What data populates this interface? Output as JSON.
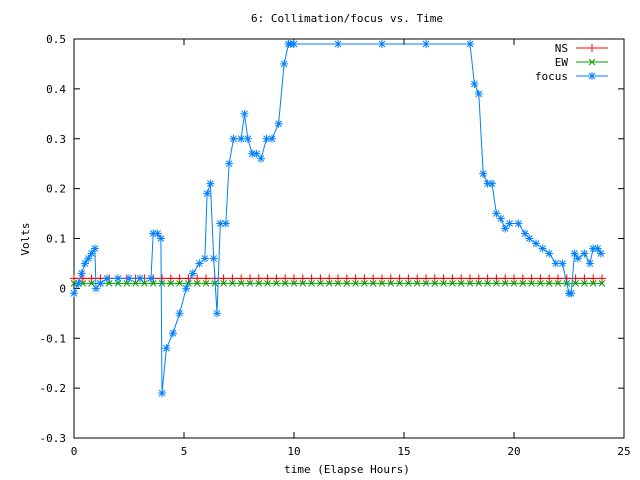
{
  "chart_data": {
    "type": "line",
    "title": "6: Collimation/focus vs. Time",
    "xlabel": "time (Elapse Hours)",
    "ylabel": "Volts",
    "xlim": [
      0,
      25
    ],
    "ylim": [
      -0.3,
      0.5
    ],
    "xticks": [
      0,
      5,
      10,
      15,
      20,
      25
    ],
    "yticks": [
      -0.3,
      -0.2,
      -0.1,
      0,
      0.1,
      0.2,
      0.3,
      0.4,
      0.5
    ],
    "xtick_labels": [
      "0",
      "5",
      "10",
      "15",
      "20",
      "25"
    ],
    "ytick_labels": [
      "-0.3",
      "-0.2",
      "-0.1",
      "0",
      "0.1",
      "0.2",
      "0.3",
      "0.4",
      "0.5"
    ],
    "grid": false,
    "legend_position": "top-right",
    "series": [
      {
        "name": "NS",
        "color": "#ff0000",
        "marker": "plus",
        "x": [
          0,
          0.4,
          0.8,
          1.2,
          1.6,
          2.0,
          2.4,
          2.8,
          3.2,
          3.6,
          4.0,
          4.4,
          4.8,
          5.2,
          5.6,
          6.0,
          6.4,
          6.8,
          7.2,
          7.6,
          8.0,
          8.4,
          8.8,
          9.2,
          9.6,
          10.0,
          10.4,
          10.8,
          11.2,
          11.6,
          12.0,
          12.4,
          12.8,
          13.2,
          13.6,
          14.0,
          14.4,
          14.8,
          15.2,
          15.6,
          16.0,
          16.4,
          16.8,
          17.2,
          17.6,
          18.0,
          18.4,
          18.8,
          19.2,
          19.6,
          20.0,
          20.4,
          20.8,
          21.2,
          21.6,
          22.0,
          22.4,
          22.8,
          23.2,
          23.6,
          24.0
        ],
        "y": [
          0.02,
          0.02,
          0.02,
          0.02,
          0.02,
          0.02,
          0.02,
          0.02,
          0.02,
          0.02,
          0.02,
          0.02,
          0.02,
          0.02,
          0.02,
          0.02,
          0.02,
          0.02,
          0.02,
          0.02,
          0.02,
          0.02,
          0.02,
          0.02,
          0.02,
          0.02,
          0.02,
          0.02,
          0.02,
          0.02,
          0.02,
          0.02,
          0.02,
          0.02,
          0.02,
          0.02,
          0.02,
          0.02,
          0.02,
          0.02,
          0.02,
          0.02,
          0.02,
          0.02,
          0.02,
          0.02,
          0.02,
          0.02,
          0.02,
          0.02,
          0.02,
          0.02,
          0.02,
          0.02,
          0.02,
          0.02,
          0.02,
          0.02,
          0.02,
          0.02,
          0.02
        ]
      },
      {
        "name": "EW",
        "color": "#00a000",
        "marker": "cross",
        "x": [
          0,
          0.4,
          0.8,
          1.2,
          1.6,
          2.0,
          2.4,
          2.8,
          3.2,
          3.6,
          4.0,
          4.4,
          4.8,
          5.2,
          5.6,
          6.0,
          6.4,
          6.8,
          7.2,
          7.6,
          8.0,
          8.4,
          8.8,
          9.2,
          9.6,
          10.0,
          10.4,
          10.8,
          11.2,
          11.6,
          12.0,
          12.4,
          12.8,
          13.2,
          13.6,
          14.0,
          14.4,
          14.8,
          15.2,
          15.6,
          16.0,
          16.4,
          16.8,
          17.2,
          17.6,
          18.0,
          18.4,
          18.8,
          19.2,
          19.6,
          20.0,
          20.4,
          20.8,
          21.2,
          21.6,
          22.0,
          22.4,
          22.8,
          23.2,
          23.6,
          24.0
        ],
        "y": [
          0.01,
          0.01,
          0.01,
          0.01,
          0.01,
          0.01,
          0.01,
          0.01,
          0.01,
          0.01,
          0.01,
          0.01,
          0.01,
          0.01,
          0.01,
          0.01,
          0.01,
          0.01,
          0.01,
          0.01,
          0.01,
          0.01,
          0.01,
          0.01,
          0.01,
          0.01,
          0.01,
          0.01,
          0.01,
          0.01,
          0.01,
          0.01,
          0.01,
          0.01,
          0.01,
          0.01,
          0.01,
          0.01,
          0.01,
          0.01,
          0.01,
          0.01,
          0.01,
          0.01,
          0.01,
          0.01,
          0.01,
          0.01,
          0.01,
          0.01,
          0.01,
          0.01,
          0.01,
          0.01,
          0.01,
          0.01,
          0.01,
          0.01,
          0.01,
          0.01,
          0.01
        ]
      },
      {
        "name": "focus",
        "color": "#0080ff",
        "marker": "star",
        "x": [
          0.0,
          0.2,
          0.35,
          0.5,
          0.65,
          0.8,
          0.95,
          1.0,
          1.2,
          1.5,
          2.0,
          2.5,
          3.0,
          3.5,
          3.6,
          3.8,
          3.95,
          4.0,
          4.2,
          4.5,
          4.8,
          5.1,
          5.4,
          5.7,
          5.95,
          6.05,
          6.2,
          6.35,
          6.5,
          6.65,
          6.9,
          7.05,
          7.25,
          7.6,
          7.75,
          7.9,
          8.1,
          8.3,
          8.5,
          8.75,
          9.0,
          9.3,
          9.55,
          9.75,
          9.85,
          10.0,
          12.0,
          14.0,
          16.0,
          18.0,
          18.2,
          18.4,
          18.6,
          18.8,
          19.0,
          19.2,
          19.4,
          19.6,
          19.8,
          20.2,
          20.5,
          20.7,
          21.0,
          21.3,
          21.6,
          21.9,
          22.2,
          22.5,
          22.6,
          22.75,
          22.9,
          23.2,
          23.45,
          23.6,
          23.8,
          23.95
        ],
        "y": [
          -0.01,
          0.01,
          0.03,
          0.05,
          0.06,
          0.07,
          0.08,
          0.0,
          0.01,
          0.02,
          0.02,
          0.02,
          0.02,
          0.02,
          0.11,
          0.11,
          0.1,
          -0.21,
          -0.12,
          -0.09,
          -0.05,
          0.0,
          0.03,
          0.05,
          0.06,
          0.19,
          0.21,
          0.06,
          -0.05,
          0.13,
          0.13,
          0.25,
          0.3,
          0.3,
          0.35,
          0.3,
          0.27,
          0.27,
          0.26,
          0.3,
          0.3,
          0.33,
          0.45,
          0.49,
          0.49,
          0.49,
          0.49,
          0.49,
          0.49,
          0.49,
          0.41,
          0.39,
          0.23,
          0.21,
          0.21,
          0.15,
          0.14,
          0.12,
          0.13,
          0.13,
          0.11,
          0.1,
          0.09,
          0.08,
          0.07,
          0.05,
          0.05,
          -0.01,
          -0.01,
          0.07,
          0.06,
          0.07,
          0.05,
          0.08,
          0.08,
          0.07
        ]
      }
    ]
  }
}
